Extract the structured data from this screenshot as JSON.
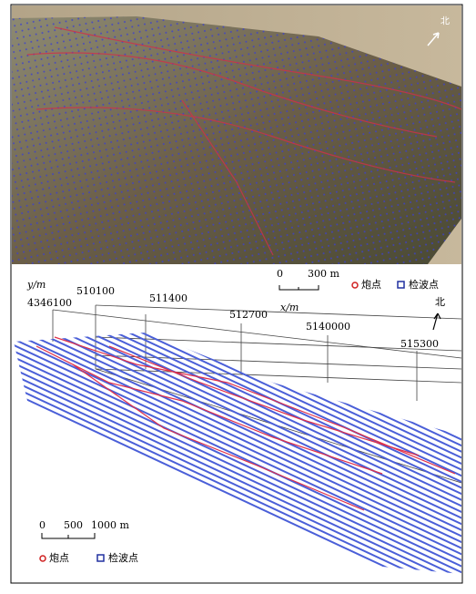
{
  "top_panel": {
    "north": "北",
    "scale": [
      "0",
      "300 m"
    ],
    "legend": [
      "炮点",
      "检波点"
    ]
  },
  "bottom_panel": {
    "y_axis_label": "y/m",
    "x_axis_label": "x/m",
    "ticks": [
      "4346100",
      "510100",
      "511400",
      "512700",
      "5140000",
      "515300"
    ],
    "north": "北",
    "scale": [
      "0",
      "500",
      "1000 m"
    ],
    "legend": [
      "炮点",
      "检波点"
    ]
  }
}
